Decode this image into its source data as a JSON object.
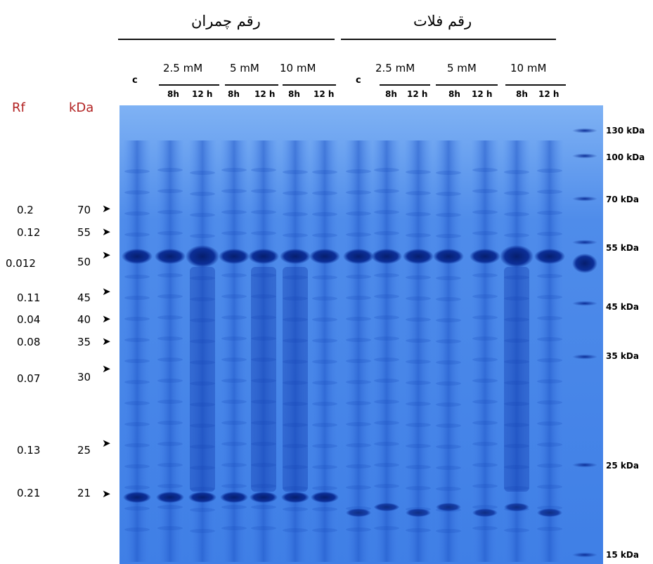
{
  "groups": [
    {
      "title": "رقم چمران"
    },
    {
      "title": "رقم فلات"
    }
  ],
  "concentrations": [
    "2.5 mM",
    "5 mM",
    "10 mM"
  ],
  "control_label": "c",
  "times": [
    "8h",
    "12 h"
  ],
  "headers": {
    "rf": "Rf",
    "kda": "kDa"
  },
  "rows": [
    {
      "rf": "0.2",
      "kda": "70"
    },
    {
      "rf": "0.12",
      "kda": "55"
    },
    {
      "rf": "0.012",
      "kda": "50"
    },
    {
      "rf": "0.11",
      "kda": "45"
    },
    {
      "rf": "0.04",
      "kda": "40"
    },
    {
      "rf": "0.08",
      "kda": "35"
    },
    {
      "rf": "0.07",
      "kda": "30"
    },
    {
      "rf": "0.13",
      "kda": "25"
    },
    {
      "rf": "0.21",
      "kda": "21"
    }
  ],
  "markers": [
    "130 kDa",
    "100 kDa",
    "70 kDa",
    "55 kDa",
    "45 kDa",
    "35 kDa",
    "25 kDa",
    "15 kDa"
  ],
  "colors": {
    "gel": "#2f6fe0",
    "band": "#0b2c8f",
    "red": "#b22222"
  }
}
